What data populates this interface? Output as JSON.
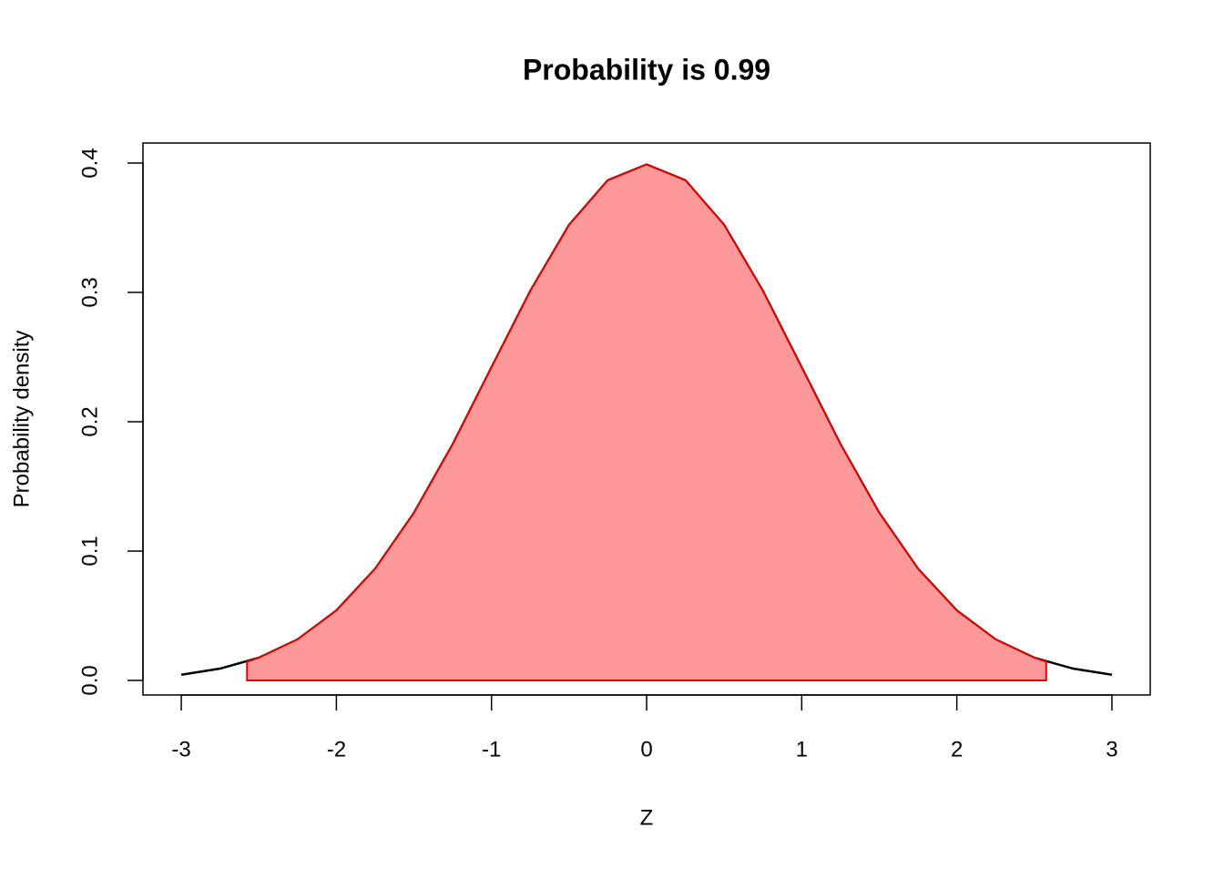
{
  "chart_data": {
    "type": "area",
    "title": "Probability is 0.99",
    "xlabel": "Z",
    "ylabel": "Probability density",
    "series": [
      {
        "type": "line",
        "color": "#000000",
        "x": [
          -3,
          -2.75,
          -2.5,
          -2.25,
          -2,
          -1.75,
          -1.5,
          -1.25,
          -1,
          -0.75,
          -0.5,
          -0.25,
          0,
          0.25,
          0.5,
          0.75,
          1,
          1.25,
          1.5,
          1.75,
          2,
          2.25,
          2.5,
          2.75,
          3
        ],
        "values": [
          0.0044,
          0.0091,
          0.0175,
          0.0317,
          0.054,
          0.0863,
          0.1295,
          0.1826,
          0.242,
          0.3011,
          0.3521,
          0.3867,
          0.3989,
          0.3867,
          0.3521,
          0.3011,
          0.242,
          0.1826,
          0.1295,
          0.0863,
          0.054,
          0.0317,
          0.0175,
          0.0091,
          0.0044
        ]
      },
      {
        "type": "area",
        "color": "#ff9999",
        "edge": "#dd0000",
        "x": [
          -2.576,
          -2.5,
          -2.25,
          -2,
          -1.75,
          -1.5,
          -1.25,
          -1,
          -0.75,
          -0.5,
          -0.25,
          0,
          0.25,
          0.5,
          0.75,
          1,
          1.25,
          1.5,
          1.75,
          2,
          2.25,
          2.5,
          2.576
        ],
        "values": [
          0.0145,
          0.0175,
          0.0317,
          0.054,
          0.0863,
          0.1295,
          0.1826,
          0.242,
          0.3011,
          0.3521,
          0.3867,
          0.3989,
          0.3867,
          0.3521,
          0.3011,
          0.242,
          0.1826,
          0.1295,
          0.0863,
          0.054,
          0.0317,
          0.0175,
          0.0145
        ]
      }
    ],
    "xlim": [
      -3.247,
      3.247
    ],
    "xticks": [
      -3,
      -2,
      -1,
      0,
      1,
      2,
      3
    ],
    "ylim": [
      -0.0113,
      0.4155
    ],
    "yticks": [
      {
        "value": 0,
        "label": "0.0"
      },
      0.1,
      0.2,
      0.3,
      0.4
    ],
    "grid": false
  }
}
